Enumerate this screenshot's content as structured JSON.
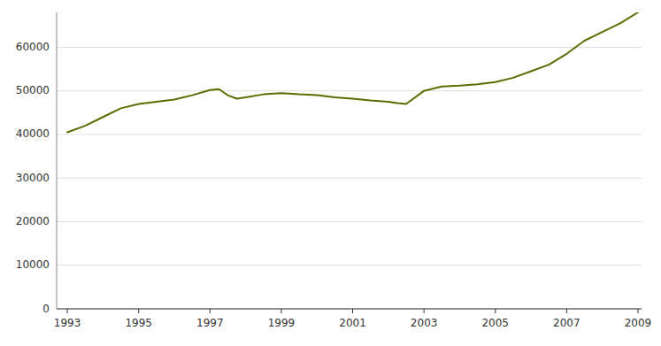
{
  "chart_data": {
    "type": "line",
    "x": [
      1993,
      1993.5,
      1994,
      1994.5,
      1995,
      1995.5,
      1996,
      1996.5,
      1997,
      1997.25,
      1997.5,
      1997.75,
      1998,
      1998.5,
      1999,
      1999.5,
      2000,
      2000.5,
      2001,
      2001.5,
      2002,
      2002.25,
      2002.5,
      2003,
      2003.5,
      2004,
      2004.5,
      2005,
      2005.5,
      2006,
      2006.5,
      2007,
      2007.5,
      2008,
      2008.5,
      2009
    ],
    "values": [
      40500,
      42000,
      44000,
      46000,
      47000,
      47500,
      48000,
      49000,
      50200,
      50400,
      49000,
      48200,
      48500,
      49200,
      49500,
      49200,
      49000,
      48500,
      48200,
      47800,
      47500,
      47200,
      47000,
      50000,
      51000,
      51200,
      51500,
      52000,
      53000,
      54500,
      56000,
      58500,
      61500,
      63500,
      65500,
      68000
    ],
    "color": "#5a6e00",
    "xlim": [
      1992.7,
      2009.1
    ],
    "xticks": [
      1993,
      1995,
      1997,
      1999,
      2001,
      2003,
      2005,
      2007,
      2009
    ],
    "ylim": [
      0,
      68000
    ],
    "yticks": [
      0,
      10000,
      20000,
      30000,
      40000,
      50000,
      60000
    ],
    "grid": true
  }
}
